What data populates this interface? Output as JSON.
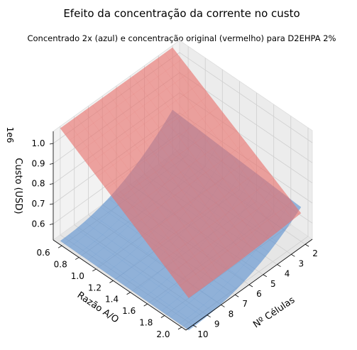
{
  "chart_data": {
    "type": "surface3d",
    "title": "Efeito da concentração da corrente no custo",
    "subtitle": "Concentrado 2x (azul) e concentração original (vermelho) para D2EHPA 2%",
    "xlabel": "Nº Células",
    "ylabel": "Razão A/O",
    "zlabel": "Custo (USD)",
    "z_offset_label": "1e6",
    "x_ticks": [
      "2",
      "3",
      "4",
      "5",
      "6",
      "7",
      "8",
      "9",
      "10"
    ],
    "y_ticks": [
      "0.6",
      "0.8",
      "1.0",
      "1.2",
      "1.4",
      "1.6",
      "1.8",
      "2.0"
    ],
    "z_ticks": [
      "0.6",
      "0.7",
      "0.8",
      "0.9",
      "1.0"
    ],
    "xlim": [
      1.5,
      10.5
    ],
    "ylim": [
      0.5,
      2.05
    ],
    "zlim": [
      0.52,
      1.06
    ],
    "grid": true,
    "series": [
      {
        "color": "#5b8fcf",
        "cells": [
          2,
          10
        ],
        "ratio": [
          0.5,
          2.0
        ],
        "cost": [
          [
            0.74,
            0.69
          ],
          [
            0.49,
            0.48
          ]
        ]
      },
      {
        "color": "#e8706a",
        "cells": [
          2,
          10
        ],
        "ratio": [
          0.5,
          2.0
        ],
        "cost": [
          [
            1.05,
            0.66
          ],
          [
            1.05,
            0.64
          ]
        ]
      }
    ]
  }
}
